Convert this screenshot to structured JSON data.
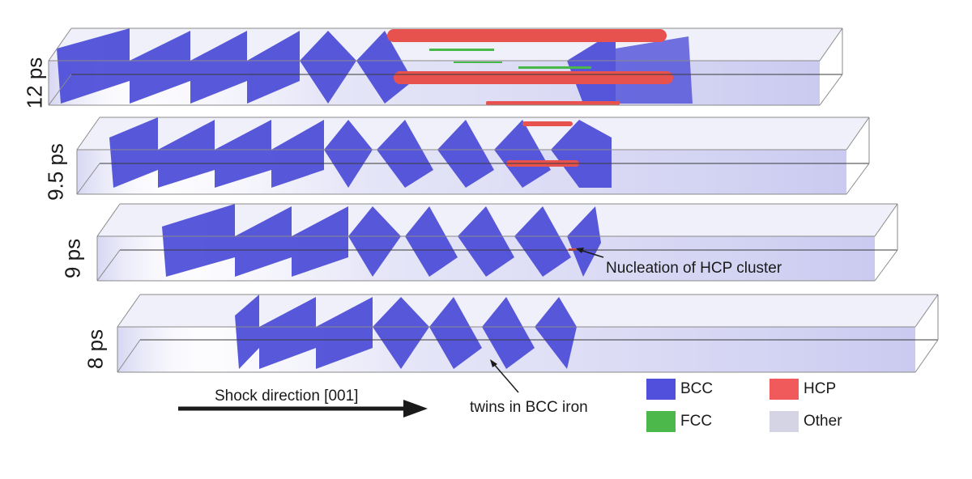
{
  "panels": [
    {
      "time": "12 ps"
    },
    {
      "time": "9.5 ps"
    },
    {
      "time": "9 ps"
    },
    {
      "time": "8 ps"
    }
  ],
  "annotations": {
    "nucleation": "Nucleation of HCP cluster",
    "twins": "twins in BCC iron",
    "shock": "Shock direction [001]"
  },
  "legend": [
    {
      "label": "BCC",
      "color": "#5050dc"
    },
    {
      "label": "HCP",
      "color": "#f05a5a"
    },
    {
      "label": "FCC",
      "color": "#4cb84c"
    },
    {
      "label": "Other",
      "color": "#d4d4e4"
    }
  ],
  "colors": {
    "bcc": "#4b4bd8",
    "hcp": "#e8524e",
    "fcc": "#48b848",
    "box_edge": "#8a8a8a",
    "haze": "#c9c9ee"
  }
}
